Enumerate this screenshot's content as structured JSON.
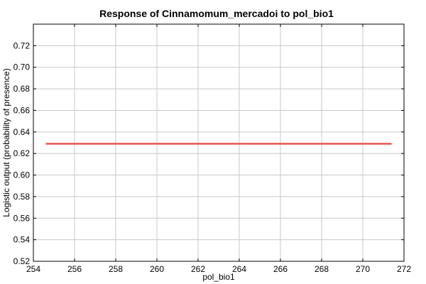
{
  "chart_data": {
    "type": "line",
    "title": "Response of Cinnamomum_mercadoi to pol_bio1",
    "xlabel": "pol_bio1",
    "ylabel": "Logistic output (probability of presence)",
    "xlim": [
      254,
      272
    ],
    "ylim": [
      0.52,
      0.74
    ],
    "xticks": [
      254,
      256,
      258,
      260,
      262,
      264,
      266,
      268,
      270,
      272
    ],
    "yticks": [
      0.52,
      0.54,
      0.56,
      0.58,
      0.6,
      0.62,
      0.64,
      0.66,
      0.68,
      0.7,
      0.72
    ],
    "grid": true,
    "series": [
      {
        "x": [
          254.6,
          271.4
        ],
        "y": [
          0.629,
          0.629
        ],
        "color": "#e8453c"
      }
    ]
  }
}
